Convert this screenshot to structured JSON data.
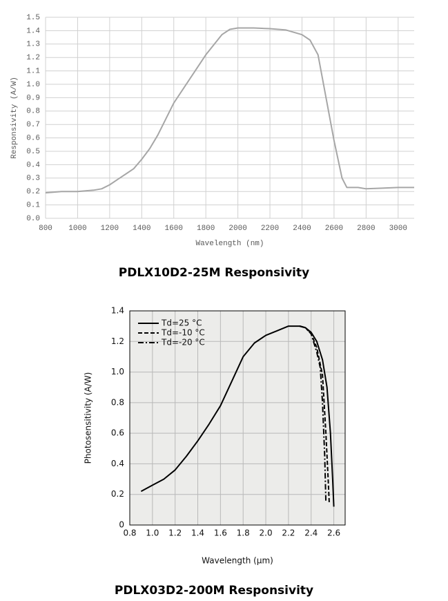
{
  "chart_data": [
    {
      "type": "line",
      "title": "PDLX10D2-25M Responsivity",
      "xlabel": "Wavelength (nm)",
      "ylabel": "Responsivity (A/W)",
      "x": [
        800,
        900,
        1000,
        1100,
        1150,
        1200,
        1250,
        1300,
        1350,
        1400,
        1450,
        1500,
        1600,
        1700,
        1800,
        1900,
        1950,
        2000,
        2100,
        2200,
        2300,
        2400,
        2450,
        2500,
        2550,
        2600,
        2650,
        2680,
        2700,
        2750,
        2800,
        2900,
        3000,
        3100
      ],
      "values": [
        0.19,
        0.2,
        0.2,
        0.21,
        0.22,
        0.25,
        0.29,
        0.33,
        0.37,
        0.44,
        0.52,
        0.62,
        0.86,
        1.04,
        1.22,
        1.37,
        1.41,
        1.42,
        1.42,
        1.415,
        1.405,
        1.37,
        1.33,
        1.22,
        0.9,
        0.58,
        0.3,
        0.23,
        0.23,
        0.23,
        0.22,
        0.225,
        0.23,
        0.23
      ],
      "color": "#a6a6a6",
      "grid": true,
      "xlim": [
        800,
        3100
      ],
      "xticks": [
        800,
        1000,
        1200,
        1400,
        1600,
        1800,
        2000,
        2200,
        2400,
        2600,
        2800,
        3000
      ],
      "ylim": [
        0,
        1.5
      ],
      "yticks": [
        {
          "value": 0,
          "label": "0.0"
        },
        0.1,
        0.2,
        0.3,
        0.4,
        0.5,
        0.6,
        0.7,
        0.8,
        0.9,
        {
          "value": 1,
          "label": "1.0"
        },
        1.1,
        1.2,
        1.3,
        1.4,
        1.5
      ]
    },
    {
      "type": "line",
      "title": "PDLX03D2-200M Responsivity",
      "xlabel": "Wavelength (μm)",
      "ylabel": "Photosensitivity (A/W)",
      "grid": true,
      "legend": "upper-left",
      "xlim": [
        0.8,
        2.7
      ],
      "xticks": [
        0.8,
        {
          "value": 1,
          "label": "1.0"
        },
        1.2,
        1.4,
        1.6,
        1.8,
        {
          "value": 2,
          "label": "2.0"
        },
        2.2,
        2.4,
        2.6
      ],
      "ylim": [
        0,
        1.4
      ],
      "yticks": [
        0,
        0.2,
        0.4,
        0.6,
        0.8,
        {
          "value": 1,
          "label": "1.0"
        },
        1.2,
        1.4
      ],
      "series": [
        {
          "name": "Td=25 °C",
          "color": "#000000",
          "dash": "solid",
          "x": [
            0.9,
            1.0,
            1.1,
            1.2,
            1.3,
            1.4,
            1.5,
            1.6,
            1.7,
            1.8,
            1.9,
            2.0,
            2.1,
            2.2,
            2.3,
            2.35,
            2.4,
            2.45,
            2.5,
            2.54,
            2.57,
            2.59,
            2.6
          ],
          "values": [
            0.22,
            0.26,
            0.3,
            0.36,
            0.45,
            0.55,
            0.66,
            0.78,
            0.94,
            1.1,
            1.19,
            1.24,
            1.27,
            1.3,
            1.3,
            1.29,
            1.26,
            1.2,
            1.08,
            0.9,
            0.6,
            0.3,
            0.12
          ]
        },
        {
          "name": "Td=-10 °C",
          "color": "#000000",
          "dash": "dashed",
          "x": [
            2.3,
            2.35,
            2.4,
            2.45,
            2.5,
            2.53,
            2.55,
            2.56
          ],
          "values": [
            1.3,
            1.29,
            1.25,
            1.16,
            0.98,
            0.6,
            0.3,
            0.14
          ]
        },
        {
          "name": "Td=-20 °C",
          "color": "#000000",
          "dash": "dashdot",
          "x": [
            2.3,
            2.35,
            2.4,
            2.45,
            2.48,
            2.5,
            2.52,
            2.53
          ],
          "values": [
            1.3,
            1.29,
            1.25,
            1.13,
            1.03,
            0.8,
            0.45,
            0.15
          ]
        }
      ]
    }
  ]
}
